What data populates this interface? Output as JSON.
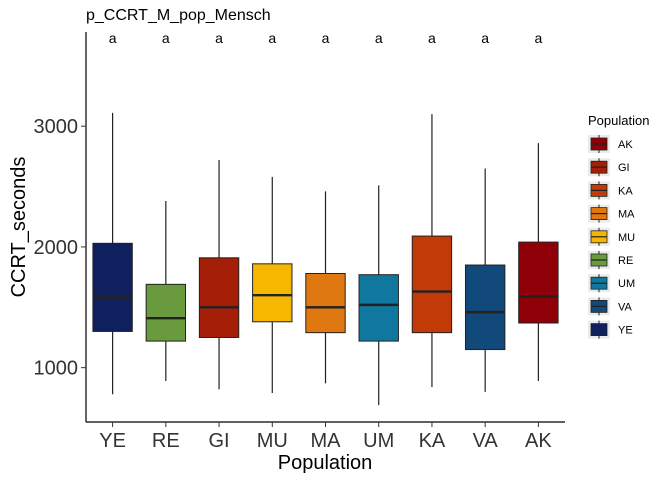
{
  "chart_data": {
    "type": "boxplot",
    "title": "p_CCRT_M_pop_Mensch",
    "xlabel": "Population",
    "ylabel": "CCRT_seconds",
    "ylim": [
      550,
      3780
    ],
    "yticks": [
      1000,
      2000,
      3000
    ],
    "ytick_labels": [
      "1000",
      "2000",
      "3000"
    ],
    "categories": [
      "YE",
      "RE",
      "GI",
      "MU",
      "MA",
      "UM",
      "KA",
      "VA",
      "AK"
    ],
    "boxes": [
      {
        "category": "YE",
        "min": 780,
        "q1": 1300,
        "median": 1580,
        "q3": 2030,
        "max": 3110,
        "color": "#10205e",
        "letter": "a"
      },
      {
        "category": "RE",
        "min": 890,
        "q1": 1220,
        "median": 1410,
        "q3": 1690,
        "max": 2380,
        "color": "#6a9a3e",
        "letter": "a"
      },
      {
        "category": "GI",
        "min": 820,
        "q1": 1250,
        "median": 1500,
        "q3": 1910,
        "max": 2720,
        "color": "#a51f08",
        "letter": "a"
      },
      {
        "category": "MU",
        "min": 790,
        "q1": 1380,
        "median": 1600,
        "q3": 1860,
        "max": 2580,
        "color": "#f5b700",
        "letter": "a"
      },
      {
        "category": "MA",
        "min": 870,
        "q1": 1290,
        "median": 1500,
        "q3": 1780,
        "max": 2460,
        "color": "#e07812",
        "letter": "a"
      },
      {
        "category": "UM",
        "min": 690,
        "q1": 1220,
        "median": 1520,
        "q3": 1770,
        "max": 2510,
        "color": "#10789f",
        "letter": "a"
      },
      {
        "category": "KA",
        "min": 840,
        "q1": 1290,
        "median": 1630,
        "q3": 2090,
        "max": 3100,
        "color": "#c23a08",
        "letter": "a"
      },
      {
        "category": "VA",
        "min": 800,
        "q1": 1150,
        "median": 1460,
        "q3": 1850,
        "max": 2650,
        "color": "#10497a",
        "letter": "a"
      },
      {
        "category": "AK",
        "min": 890,
        "q1": 1370,
        "median": 1590,
        "q3": 2040,
        "max": 2860,
        "color": "#8f0008",
        "letter": "a"
      }
    ],
    "legend": {
      "title": "Population",
      "placement": "right",
      "entries": [
        {
          "label": "AK",
          "color": "#8f0008"
        },
        {
          "label": "GI",
          "color": "#a51f08"
        },
        {
          "label": "KA",
          "color": "#c23a08"
        },
        {
          "label": "MA",
          "color": "#e07812"
        },
        {
          "label": "MU",
          "color": "#f5b700"
        },
        {
          "label": "RE",
          "color": "#6a9a3e"
        },
        {
          "label": "UM",
          "color": "#10789f"
        },
        {
          "label": "VA",
          "color": "#10497a"
        },
        {
          "label": "YE",
          "color": "#10205e"
        }
      ]
    },
    "grid": false
  }
}
